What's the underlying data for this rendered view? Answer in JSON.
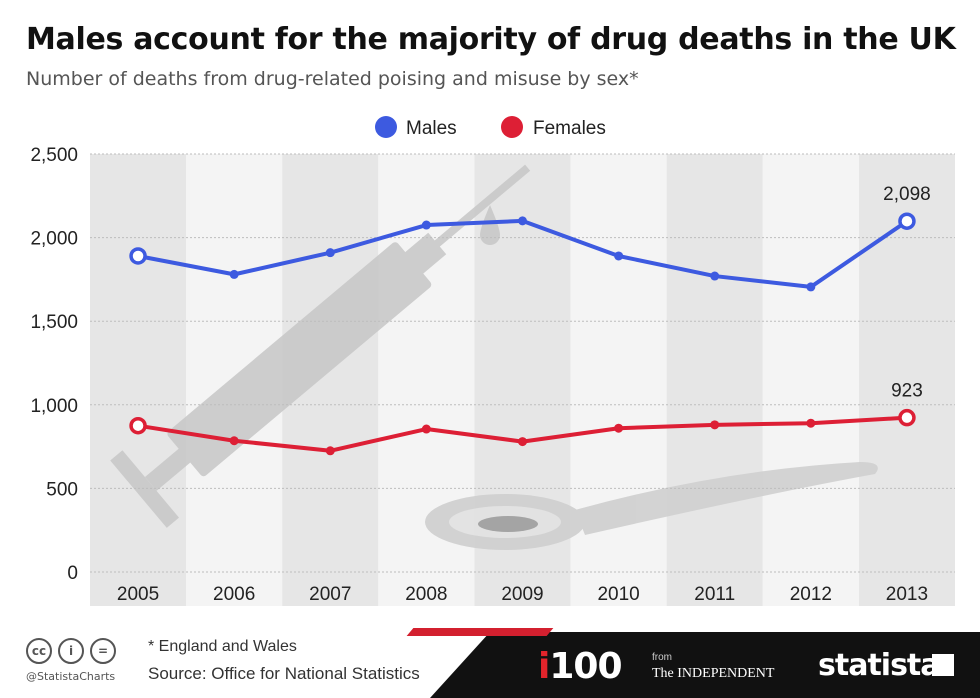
{
  "header": {
    "title": "Males account for the majority of drug deaths in the UK",
    "subtitle": "Number of deaths from drug-related poising and misuse by sex*"
  },
  "chart_data": {
    "type": "line",
    "categories": [
      "2005",
      "2006",
      "2007",
      "2008",
      "2009",
      "2010",
      "2011",
      "2012",
      "2013"
    ],
    "series": [
      {
        "name": "Males",
        "color": "#3d5ae0",
        "values": [
          1890,
          1780,
          1910,
          2075,
          2100,
          1890,
          1770,
          1705,
          2098
        ]
      },
      {
        "name": "Females",
        "color": "#dd1f35",
        "values": [
          875,
          785,
          725,
          855,
          780,
          860,
          880,
          890,
          923
        ]
      }
    ],
    "ylim": [
      0,
      2500
    ],
    "yticks": [
      0,
      500,
      1000,
      1500,
      2000,
      2500
    ],
    "ytick_labels": [
      "0",
      "500",
      "1,000",
      "1,500",
      "2,000",
      "2,500"
    ],
    "data_labels": [
      {
        "series": "Males",
        "category": "2013",
        "text": "2,098"
      },
      {
        "series": "Females",
        "category": "2013",
        "text": "923"
      }
    ],
    "legend_position": "top-center",
    "grid": true
  },
  "footer": {
    "note": "* England and Wales",
    "source": "Source: Office for National Statistics",
    "handle": "@StatistaCharts",
    "brand_i100": "100",
    "brand_i": "i",
    "brand_from": "from",
    "brand_independent": "The INDEPENDENT",
    "brand_statista": "statista"
  }
}
